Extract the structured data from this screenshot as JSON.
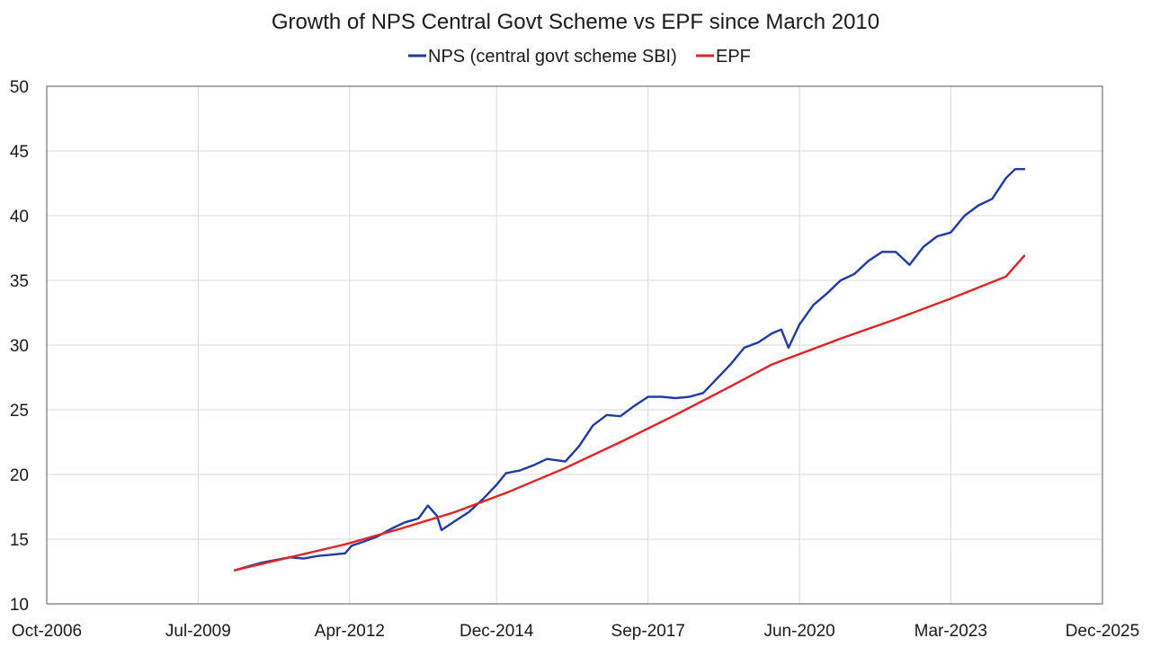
{
  "chart_data": {
    "type": "line",
    "title": "Growth of NPS Central Govt Scheme vs EPF since March 2010",
    "xlabel": "",
    "ylabel": "",
    "grid": true,
    "legend_position": "top-center",
    "x_axis_type": "date",
    "xlim": [
      "2006-10-01",
      "2025-12-01"
    ],
    "ylim": [
      10,
      50
    ],
    "x_ticks": [
      "2006-10-01",
      "2009-07-01",
      "2012-04-01",
      "2014-12-01",
      "2017-09-01",
      "2020-06-01",
      "2023-03-01",
      "2025-12-01"
    ],
    "x_tick_labels": [
      "Oct-2006",
      "Jul-2009",
      "Apr-2012",
      "Dec-2014",
      "Sep-2017",
      "Jun-2020",
      "Mar-2023",
      "Dec-2025"
    ],
    "y_ticks": [
      10,
      15,
      20,
      25,
      30,
      35,
      40,
      45,
      50
    ],
    "y_tick_labels": [
      "10",
      "15",
      "20",
      "25",
      "30",
      "35",
      "40",
      "45",
      "50"
    ],
    "series": [
      {
        "name": "NPS (central govt scheme SBI)",
        "color": "#1f3aa6",
        "points": [
          [
            "2010-03-01",
            12.6
          ],
          [
            "2010-06-01",
            12.9
          ],
          [
            "2010-09-01",
            13.2
          ],
          [
            "2010-12-01",
            13.4
          ],
          [
            "2011-03-01",
            13.6
          ],
          [
            "2011-06-01",
            13.5
          ],
          [
            "2011-09-01",
            13.7
          ],
          [
            "2011-12-01",
            13.8
          ],
          [
            "2012-03-01",
            13.9
          ],
          [
            "2012-04-15",
            14.5
          ],
          [
            "2012-07-01",
            14.8
          ],
          [
            "2012-10-01",
            15.2
          ],
          [
            "2013-01-01",
            15.8
          ],
          [
            "2013-04-01",
            16.3
          ],
          [
            "2013-07-01",
            16.6
          ],
          [
            "2013-09-01",
            17.6
          ],
          [
            "2013-11-01",
            16.8
          ],
          [
            "2013-12-01",
            15.7
          ],
          [
            "2014-03-01",
            16.4
          ],
          [
            "2014-06-01",
            17.1
          ],
          [
            "2014-09-01",
            18.1
          ],
          [
            "2014-12-01",
            19.2
          ],
          [
            "2015-02-01",
            20.1
          ],
          [
            "2015-05-01",
            20.3
          ],
          [
            "2015-08-01",
            20.7
          ],
          [
            "2015-11-01",
            21.2
          ],
          [
            "2016-03-01",
            21.0
          ],
          [
            "2016-06-01",
            22.2
          ],
          [
            "2016-09-01",
            23.8
          ],
          [
            "2016-12-01",
            24.6
          ],
          [
            "2017-03-01",
            24.5
          ],
          [
            "2017-06-01",
            25.3
          ],
          [
            "2017-09-01",
            26.0
          ],
          [
            "2017-12-01",
            26.0
          ],
          [
            "2018-03-01",
            25.9
          ],
          [
            "2018-06-01",
            26.0
          ],
          [
            "2018-09-01",
            26.3
          ],
          [
            "2018-12-01",
            27.4
          ],
          [
            "2019-03-01",
            28.5
          ],
          [
            "2019-06-01",
            29.8
          ],
          [
            "2019-09-01",
            30.2
          ],
          [
            "2019-12-01",
            30.9
          ],
          [
            "2020-02-01",
            31.2
          ],
          [
            "2020-03-20",
            29.8
          ],
          [
            "2020-06-01",
            31.6
          ],
          [
            "2020-09-01",
            33.1
          ],
          [
            "2020-12-01",
            34.0
          ],
          [
            "2021-03-01",
            35.0
          ],
          [
            "2021-06-01",
            35.5
          ],
          [
            "2021-09-01",
            36.5
          ],
          [
            "2021-12-01",
            37.2
          ],
          [
            "2022-03-01",
            37.2
          ],
          [
            "2022-06-01",
            36.2
          ],
          [
            "2022-09-01",
            37.6
          ],
          [
            "2022-12-01",
            38.4
          ],
          [
            "2023-03-01",
            38.7
          ],
          [
            "2023-06-01",
            40.0
          ],
          [
            "2023-09-01",
            40.8
          ],
          [
            "2023-12-01",
            41.3
          ],
          [
            "2024-03-01",
            42.9
          ],
          [
            "2024-05-01",
            43.6
          ],
          [
            "2024-07-01",
            43.6
          ]
        ]
      },
      {
        "name": "EPF",
        "color": "#e02424",
        "points": [
          [
            "2010-03-01",
            12.6
          ],
          [
            "2011-03-01",
            13.6
          ],
          [
            "2012-03-01",
            14.6
          ],
          [
            "2013-03-01",
            15.8
          ],
          [
            "2014-03-01",
            17.1
          ],
          [
            "2015-03-01",
            18.7
          ],
          [
            "2016-03-01",
            20.5
          ],
          [
            "2017-03-01",
            22.5
          ],
          [
            "2018-03-01",
            24.6
          ],
          [
            "2019-03-01",
            26.8
          ],
          [
            "2019-12-01",
            28.5
          ],
          [
            "2020-03-01",
            28.9
          ],
          [
            "2021-03-01",
            30.5
          ],
          [
            "2022-03-01",
            32.0
          ],
          [
            "2023-03-01",
            33.6
          ],
          [
            "2024-03-01",
            35.3
          ],
          [
            "2024-07-01",
            36.9
          ]
        ]
      }
    ]
  }
}
